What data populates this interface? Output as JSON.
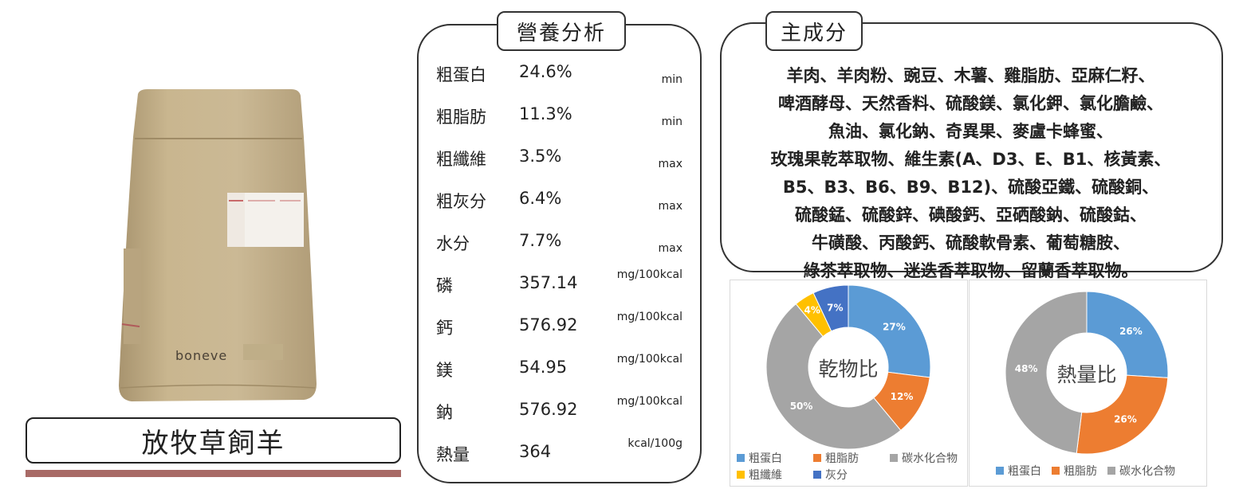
{
  "product": {
    "name": "放牧草飼羊",
    "brand_logo": "boneve",
    "accent_bar_color": "#a86a66"
  },
  "nutrition": {
    "title": "營養分析",
    "rows": [
      {
        "label": "粗蛋白",
        "value": "24.6%",
        "unit": "min"
      },
      {
        "label": "粗脂肪",
        "value": "11.3%",
        "unit": "min"
      },
      {
        "label": "粗纖維",
        "value": "3.5%",
        "unit": "max"
      },
      {
        "label": "粗灰分",
        "value": "6.4%",
        "unit": "max"
      },
      {
        "label": "水分",
        "value": "7.7%",
        "unit": "max"
      },
      {
        "label": "磷",
        "value": "357.14",
        "unit": "mg/100kcal"
      },
      {
        "label": "鈣",
        "value": "576.92",
        "unit": "mg/100kcal"
      },
      {
        "label": "鎂",
        "value": "54.95",
        "unit": "mg/100kcal"
      },
      {
        "label": "鈉",
        "value": "576.92",
        "unit": "mg/100kcal"
      },
      {
        "label": "熱量",
        "value": "364",
        "unit": "kcal/100g"
      }
    ]
  },
  "ingredients": {
    "title": "主成分",
    "lines": [
      "羊肉、羊肉粉、豌豆、木薯、雞脂肪、亞麻仁籽、",
      "啤酒酵母、天然香料、硫酸鎂、氯化鉀、氯化膽鹼、",
      "魚油、氯化鈉、奇異果、麥盧卡蜂蜜、",
      "玫瑰果乾萃取物、維生素(A、D3、E、B1、核黃素、",
      "B5、B3、B6、B9、B12)、硫酸亞鐵、硫酸銅、",
      "硫酸錳、硫酸鋅、碘酸鈣、亞硒酸鈉、硫酸鈷、",
      "牛磺酸、丙酸鈣、硫酸軟骨素、葡萄糖胺、",
      "綠茶萃取物、迷迭香萃取物、留蘭香萃取物。"
    ]
  },
  "chart_data": [
    {
      "type": "pie",
      "style": "donut",
      "center_label": "乾物比",
      "categories": [
        "粗蛋白",
        "粗脂肪",
        "碳水化合物",
        "粗纖維",
        "灰分"
      ],
      "values": [
        27,
        12,
        50,
        4,
        7
      ],
      "labels": [
        "27%",
        "12%",
        "50%",
        "4%",
        "7%"
      ],
      "colors": [
        "#5b9bd5",
        "#ed7d31",
        "#a5a5a5",
        "#ffc000",
        "#4472c4"
      ],
      "legend": "bottom"
    },
    {
      "type": "pie",
      "style": "donut",
      "center_label": "熱量比",
      "categories": [
        "粗蛋白",
        "粗脂肪",
        "碳水化合物"
      ],
      "values": [
        26,
        26,
        48
      ],
      "labels": [
        "26%",
        "26%",
        "48%"
      ],
      "colors": [
        "#5b9bd5",
        "#ed7d31",
        "#a5a5a5"
      ],
      "legend": "bottom"
    }
  ]
}
